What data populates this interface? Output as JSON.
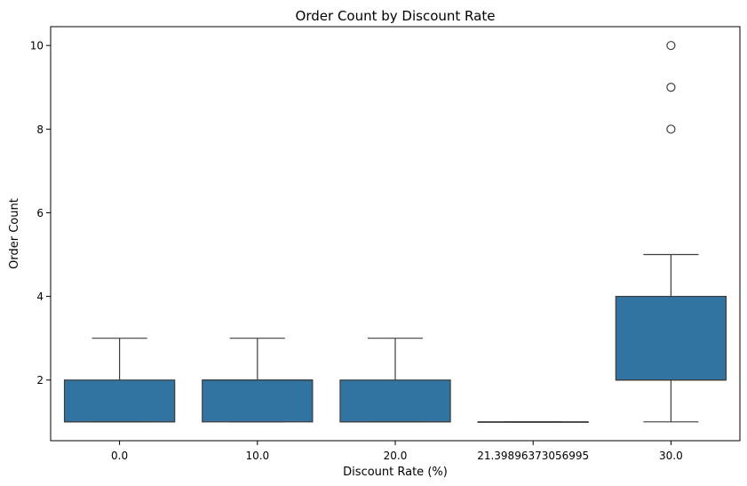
{
  "chart_data": {
    "type": "box",
    "title": "Order Count by Discount Rate",
    "xlabel": "Discount Rate (%)",
    "ylabel": "Order Count",
    "categories": [
      "0.0",
      "10.0",
      "20.0",
      "21.39896373056995",
      "30.0"
    ],
    "boxes": [
      {
        "category": "0.0",
        "whislo": 1,
        "q1": 1,
        "med": 1,
        "q3": 2,
        "whishi": 3,
        "fliers": []
      },
      {
        "category": "10.0",
        "whislo": 1,
        "q1": 1,
        "med": 2,
        "q3": 2,
        "whishi": 3,
        "fliers": []
      },
      {
        "category": "20.0",
        "whislo": 1,
        "q1": 1,
        "med": 1,
        "q3": 2,
        "whishi": 3,
        "fliers": []
      },
      {
        "category": "21.39896373056995",
        "whislo": 1,
        "q1": 1,
        "med": 1,
        "q3": 1,
        "whishi": 1,
        "fliers": []
      },
      {
        "category": "30.0",
        "whislo": 1,
        "q1": 2,
        "med": 2,
        "q3": 4,
        "whishi": 5,
        "fliers": [
          8,
          9,
          10
        ]
      }
    ],
    "yticks": [
      2,
      4,
      6,
      8,
      10
    ],
    "ylim": [
      0.55,
      10.45
    ],
    "grid": false,
    "colors": {
      "box_fill": "#3274a1",
      "line": "#3d3d3d"
    }
  }
}
